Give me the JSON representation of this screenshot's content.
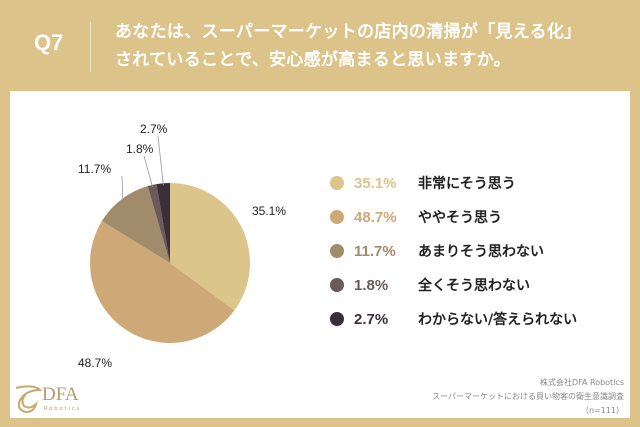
{
  "header": {
    "q": "Q7",
    "title_line1": "あなたは、スーパーマーケットの店内の清掃が「見える化」",
    "title_line2": "されていることで、安心感が高まると思いますか。"
  },
  "chart_data": {
    "type": "pie",
    "title": "あなたは、スーパーマーケットの店内の清掃が「見える化」されていることで、安心感が高まると思いますか。",
    "categories": [
      "非常にそう思う",
      "ややそう思う",
      "あまりそう思わない",
      "全くそう思わない",
      "わからない/答えられない"
    ],
    "values": [
      35.1,
      48.7,
      11.7,
      1.8,
      2.7
    ],
    "labels": [
      "35.1%",
      "48.7%",
      "11.7%",
      "1.8%",
      "2.7%"
    ],
    "colors": [
      "#dcc58a",
      "#cfa877",
      "#a08b6b",
      "#6a5a5a",
      "#3a2e3a"
    ],
    "legend": "right"
  },
  "footer": {
    "company": "株式会社DFA Robotics",
    "survey": "スーパーマーケットにおける買い物客の衛生意識調査",
    "n": "（n=111）"
  },
  "logo": {
    "name": "DFA",
    "sub": "Robotics"
  }
}
